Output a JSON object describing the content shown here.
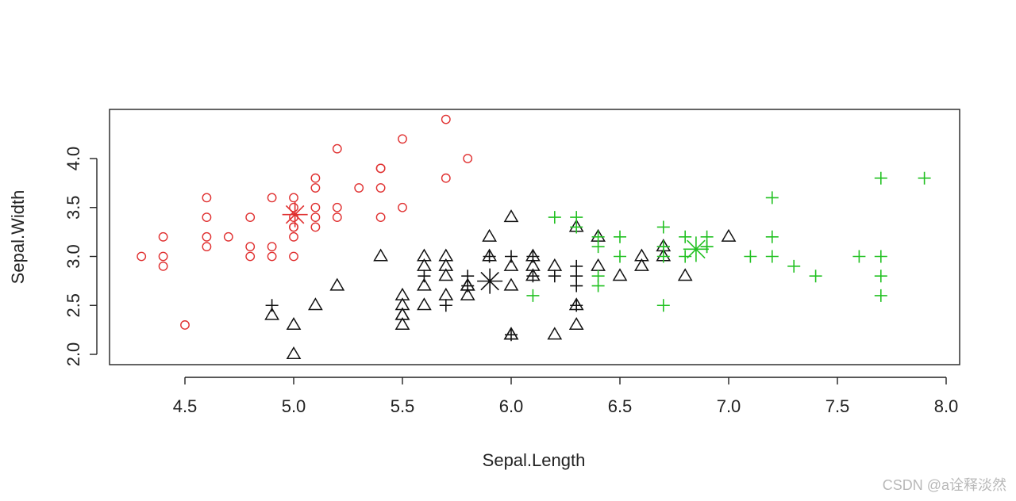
{
  "watermark": "CSDN @a诠释淡然",
  "chart_data": {
    "type": "scatter",
    "xlabel": "Sepal.Length",
    "ylabel": "Sepal.Width",
    "xlim": [
      4.3,
      8.0
    ],
    "ylim": [
      2.0,
      4.4
    ],
    "xticks": [
      "4.5",
      "5.0",
      "5.5",
      "6.0",
      "6.5",
      "7.0",
      "7.5",
      "8.0"
    ],
    "yticks": [
      "2.0",
      "2.5",
      "3.0",
      "3.5",
      "4.0"
    ],
    "grid": false,
    "colors": {
      "circle": "#e03030",
      "triangle": "#111111",
      "plus_black": "#111111",
      "plus_green": "#22c122"
    },
    "series": [
      {
        "marker": "circle",
        "color": "#e03030",
        "x": [
          4.3,
          4.4,
          4.4,
          4.4,
          4.5,
          4.6,
          4.6,
          4.6,
          4.6,
          4.7,
          4.8,
          4.8,
          4.8,
          4.9,
          4.9,
          4.9,
          5.0,
          5.0,
          5.0,
          5.0,
          5.0,
          5.0,
          5.0,
          5.1,
          5.1,
          5.1,
          5.1,
          5.1,
          5.2,
          5.2,
          5.2,
          5.3,
          5.4,
          5.4,
          5.4,
          5.4,
          5.5,
          5.5,
          5.7,
          5.7,
          5.8
        ],
        "y": [
          3.0,
          2.9,
          3.0,
          3.2,
          2.3,
          3.1,
          3.2,
          3.4,
          3.6,
          3.2,
          3.0,
          3.1,
          3.4,
          3.0,
          3.1,
          3.6,
          3.0,
          3.2,
          3.3,
          3.4,
          3.5,
          3.6,
          3.3,
          3.3,
          3.4,
          3.5,
          3.7,
          3.8,
          3.4,
          3.5,
          4.1,
          3.7,
          3.4,
          3.7,
          3.9,
          3.9,
          3.5,
          4.2,
          3.8,
          4.4,
          4.0
        ]
      },
      {
        "marker": "triangle",
        "color": "#111111",
        "x": [
          4.9,
          5.0,
          5.0,
          5.1,
          5.2,
          5.4,
          5.5,
          5.5,
          5.5,
          5.5,
          5.5,
          5.6,
          5.6,
          5.6,
          5.6,
          5.7,
          5.7,
          5.7,
          5.7,
          5.8,
          5.8,
          5.8,
          5.9,
          5.9,
          6.0,
          6.0,
          6.0,
          6.0,
          6.0,
          6.1,
          6.1,
          6.1,
          6.2,
          6.2,
          6.3,
          6.3,
          6.3,
          6.4,
          6.4,
          6.5,
          6.6,
          6.6,
          6.7,
          6.7,
          6.8,
          7.0
        ],
        "y": [
          2.4,
          2.0,
          2.3,
          2.5,
          2.7,
          3.0,
          2.3,
          2.4,
          2.5,
          2.6,
          2.4,
          2.5,
          2.7,
          2.9,
          3.0,
          2.6,
          2.8,
          2.9,
          3.0,
          2.6,
          2.7,
          2.7,
          3.0,
          3.2,
          2.2,
          2.7,
          2.9,
          3.4,
          2.2,
          2.8,
          3.0,
          2.9,
          2.2,
          2.9,
          2.3,
          2.5,
          3.3,
          2.9,
          3.2,
          2.8,
          2.9,
          3.0,
          3.0,
          3.1,
          2.8,
          3.2
        ]
      },
      {
        "marker": "plus",
        "color": "#111111",
        "x": [
          4.9,
          5.6,
          5.7,
          5.8,
          5.8,
          5.9,
          6.0,
          6.0,
          6.1,
          6.1,
          6.2,
          6.3,
          6.3,
          6.3,
          6.3,
          6.7
        ],
        "y": [
          2.5,
          2.8,
          2.5,
          2.7,
          2.8,
          3.0,
          2.2,
          3.0,
          2.8,
          3.0,
          2.8,
          2.5,
          2.7,
          2.8,
          2.9,
          3.1
        ]
      },
      {
        "marker": "plus",
        "color": "#22c122",
        "x": [
          6.1,
          6.2,
          6.3,
          6.3,
          6.4,
          6.4,
          6.4,
          6.4,
          6.5,
          6.5,
          6.7,
          6.7,
          6.7,
          6.7,
          6.8,
          6.8,
          6.9,
          6.9,
          6.9,
          7.1,
          7.2,
          7.2,
          7.2,
          7.3,
          7.4,
          7.6,
          7.7,
          7.7,
          7.7,
          7.7,
          7.9
        ],
        "y": [
          2.6,
          3.4,
          3.3,
          3.4,
          2.7,
          2.8,
          3.1,
          3.2,
          3.0,
          3.2,
          2.5,
          3.0,
          3.1,
          3.3,
          3.0,
          3.2,
          3.1,
          3.1,
          3.2,
          3.0,
          3.0,
          3.2,
          3.6,
          2.9,
          2.8,
          3.0,
          2.6,
          2.8,
          3.0,
          3.8,
          3.8
        ]
      }
    ],
    "centers": [
      {
        "x": 5.006,
        "y": 3.428,
        "color": "#e03030"
      },
      {
        "x": 5.902,
        "y": 2.748,
        "color": "#111111"
      },
      {
        "x": 6.85,
        "y": 3.074,
        "color": "#22c122"
      }
    ]
  }
}
